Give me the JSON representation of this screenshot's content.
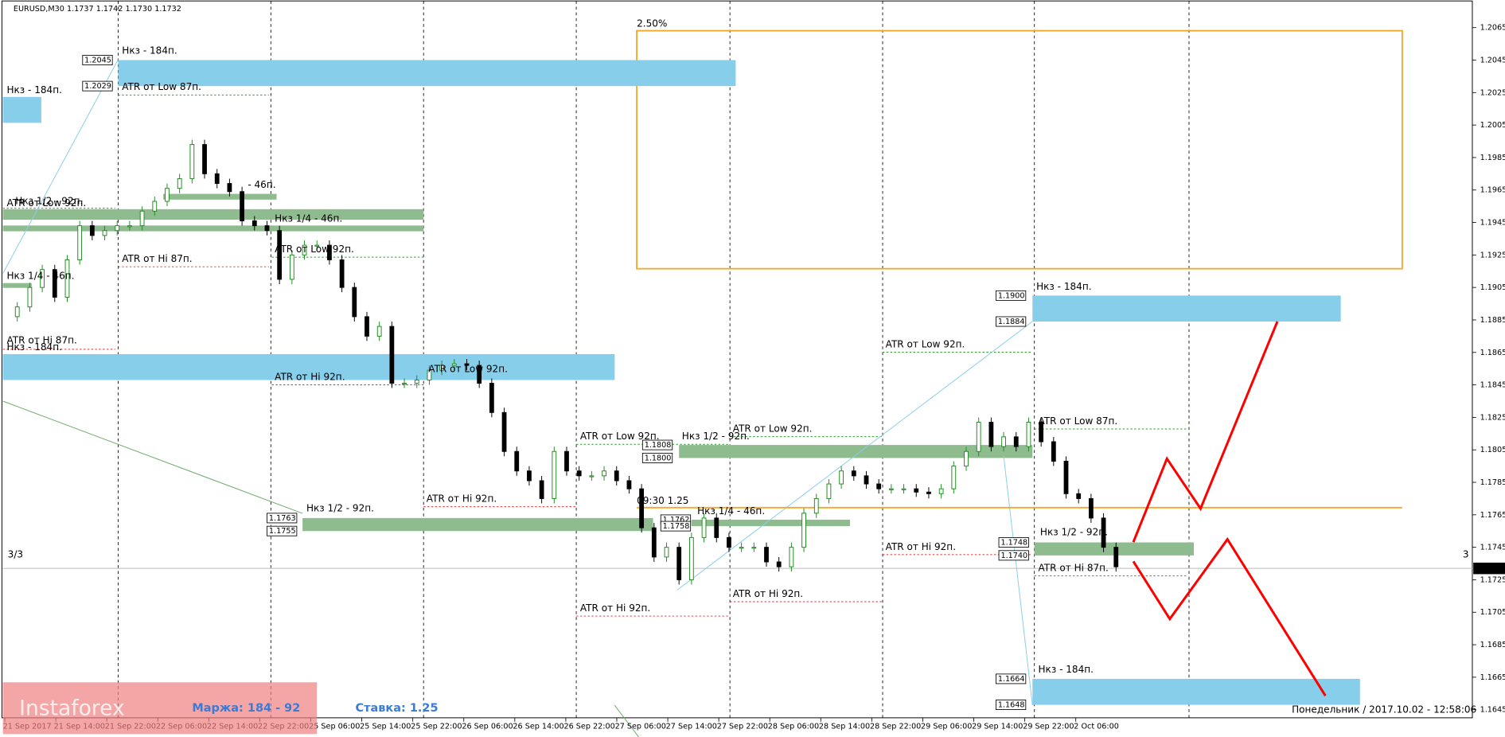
{
  "chart_data": {
    "type": "candlestick",
    "header": "EURUSD,M30  1.1737 1.1742 1.1730 1.1732",
    "categories": [
      "21 Sep 2017",
      "21 Sep 14:00",
      "21 Sep 22:00",
      "22 Sep 06:00",
      "22 Sep 14:00",
      "22 Sep 22:00",
      "25 Sep 06:00",
      "25 Sep 14:00",
      "25 Sep 22:00",
      "26 Sep 06:00",
      "26 Sep 14:00",
      "26 Sep 22:00",
      "27 Sep 06:00",
      "27 Sep 14:00",
      "27 Sep 22:00",
      "28 Sep 06:00",
      "28 Sep 14:00",
      "28 Sep 22:00",
      "29 Sep 06:00",
      "29 Sep 14:00",
      "29 Sep 22:00",
      "2 Oct 06:00"
    ],
    "closes": [
      1.1887,
      1.1893,
      1.1905,
      1.1916,
      1.1899,
      1.1922,
      1.1943,
      1.1937,
      1.194,
      1.1943,
      1.1943,
      1.1952,
      1.1958,
      1.1966,
      1.1972,
      1.1993,
      1.1975,
      1.1969,
      1.1964,
      1.1946,
      1.1943,
      1.194,
      1.191,
      1.1925,
      1.1931,
      1.1931,
      1.1922,
      1.1905,
      1.1887,
      1.1875,
      1.1881,
      1.1846,
      1.1846,
      1.1848,
      1.1854,
      1.1857,
      1.1858,
      1.1857,
      1.1846,
      1.1828,
      1.1804,
      1.1792,
      1.1786,
      1.1775,
      1.1804,
      1.1792,
      1.1789,
      1.1789,
      1.1792,
      1.1786,
      1.1781,
      1.1757,
      1.1739,
      1.1745,
      1.1725,
      1.1751,
      1.1763,
      1.1751,
      1.1745,
      1.1745,
      1.1745,
      1.1736,
      1.1733,
      1.1745,
      1.1766,
      1.1775,
      1.1784,
      1.1792,
      1.1789,
      1.1784,
      1.1781,
      1.1781,
      1.1781,
      1.1779,
      1.1778,
      1.1781,
      1.1795,
      1.1804,
      1.1822,
      1.1807,
      1.1813,
      1.1807,
      1.1822,
      1.181,
      1.1798,
      1.1778,
      1.1775,
      1.1763,
      1.1745,
      1.1733
    ],
    "up_color": "#1e8c1e",
    "down_color": "#000000",
    "ylim": [
      1.164,
      1.2082
    ],
    "yticks": [
      1.1645,
      1.1665,
      1.1685,
      1.1705,
      1.1725,
      1.1745,
      1.1765,
      1.1785,
      1.1805,
      1.1825,
      1.1845,
      1.1865,
      1.1885,
      1.1905,
      1.1925,
      1.1945,
      1.1965,
      1.1985,
      1.2005,
      1.2025,
      1.2045,
      1.2065
    ],
    "current_price": 1.1732,
    "labels": [
      "Нкз - 184п.",
      "ATR от Low 87п.",
      "Нкз - 184п.",
      "Нкз 1/2 - 92п.",
      "ATR от Low 92п.",
      "- 46п.",
      "Нкз 1/4 - 46п.",
      "ATR от Low 92п.",
      "ATR от Hi 87п.",
      "Нкз 1/4 - 46п.",
      "ATR от Hi 87п.",
      "Нкз - 184п.",
      "ATR от Hi 92п.",
      "ATR от Low 92п.",
      "ATR от Low 92п.",
      "Нкз 1/2 - 92п.",
      "ATR от Low 92п.",
      "ATR от Low 92п.",
      "Нкз - 184п.",
      "ATR от Low 87п.",
      "09:30 1.25",
      "ATR от Hi 92п.",
      "Нкз 1/2 - 92п.",
      "Нкз 1/4 - 46п.",
      "ATR от Hi 92п.",
      "Нкз 1/2 - 92п.",
      "ATR от Hi 87п.",
      "ATR от Hi 92п.",
      "ATR от Hi 92п.",
      "Нкз - 184п.",
      "2.50%",
      "3/3",
      "3"
    ],
    "price_tags": [
      1.2045,
      1.2029,
      {
        "value": 1.19,
        "label": "1.1900"
      },
      1.1884,
      1.1808,
      {
        "value": 1.18,
        "label": "1.1800"
      },
      1.1763,
      1.1755,
      1.1762,
      1.1758,
      1.1748,
      {
        "value": 1.174,
        "label": "1.1740"
      },
      1.1664,
      1.1648
    ],
    "footer_date": "Понедельник  /  2017.10.02  -  12:58:06",
    "rate": "Ставка: 1.25",
    "watermark": "Instaforex",
    "margin": "Маржа: 184 - 92"
  }
}
